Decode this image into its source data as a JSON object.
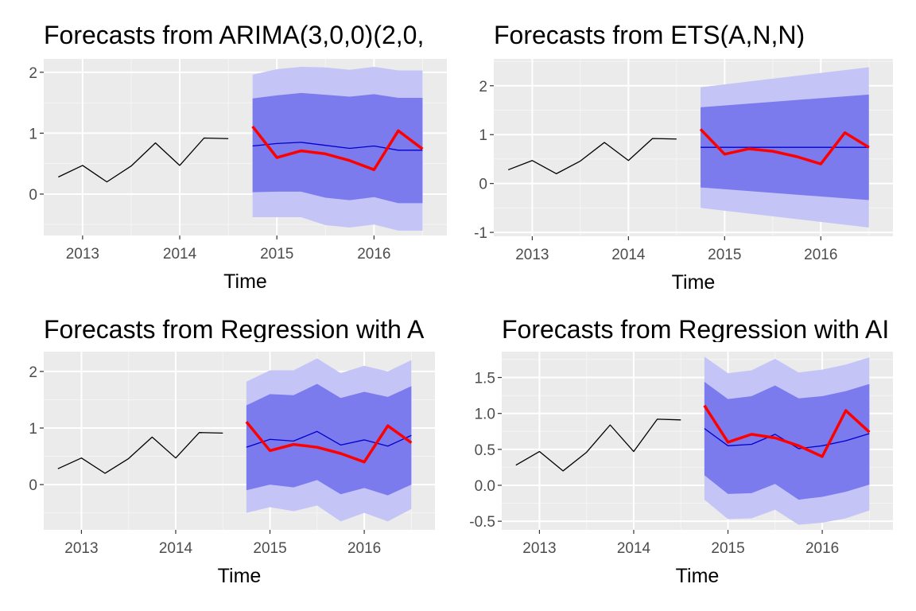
{
  "colors": {
    "panel_bg": "#EBEBEB",
    "grid_major": "#FFFFFF",
    "grid_minor": "#F5F5F5",
    "history_line": "#000000",
    "forecast_mean": "#0000CC",
    "interval_80": "#7B7BEE",
    "interval_95": "#C4C4F7",
    "actual_line": "#FF0000",
    "tick_text": "#4D4D4D"
  },
  "chart_data": [
    {
      "type": "line",
      "title": "Forecasts from ARIMA(3,0,0)(2,0,",
      "xlabel": "Time",
      "ylabel": "",
      "xlim": [
        2012.6,
        2016.75
      ],
      "ylim": [
        -0.68,
        2.22
      ],
      "x_ticks": [
        2013,
        2014,
        2015,
        2016
      ],
      "x_tick_labels": [
        "2013",
        "2014",
        "2015",
        "2016"
      ],
      "y_ticks": [
        0,
        1,
        2
      ],
      "y_tick_labels": [
        "0",
        "1",
        "2"
      ],
      "grid": true,
      "legend": "none",
      "history": {
        "x": [
          2012.75,
          2013.0,
          2013.25,
          2013.5,
          2013.75,
          2014.0,
          2014.25,
          2014.5
        ],
        "y": [
          0.28,
          0.47,
          0.2,
          0.46,
          0.84,
          0.47,
          0.92,
          0.91
        ]
      },
      "forecast": {
        "x": [
          2014.75,
          2015.0,
          2015.25,
          2015.5,
          2015.75,
          2016.0,
          2016.25,
          2016.5
        ],
        "mean": [
          0.79,
          0.83,
          0.85,
          0.8,
          0.75,
          0.79,
          0.72,
          0.72
        ],
        "lo80": [
          0.03,
          0.04,
          0.04,
          -0.06,
          -0.1,
          -0.05,
          -0.15,
          -0.15
        ],
        "hi80": [
          1.57,
          1.62,
          1.66,
          1.63,
          1.6,
          1.64,
          1.58,
          1.58
        ],
        "lo95": [
          -0.38,
          -0.38,
          -0.38,
          -0.51,
          -0.55,
          -0.5,
          -0.6,
          -0.6
        ],
        "hi95": [
          1.96,
          2.05,
          2.09,
          2.08,
          2.04,
          2.09,
          2.03,
          2.03
        ]
      },
      "actual": {
        "x": [
          2014.75,
          2015.0,
          2015.25,
          2015.5,
          2015.75,
          2016.0,
          2016.25,
          2016.5
        ],
        "y": [
          1.11,
          0.6,
          0.71,
          0.66,
          0.55,
          0.4,
          1.04,
          0.74
        ]
      }
    },
    {
      "type": "line",
      "title": "Forecasts from ETS(A,N,N)",
      "xlabel": "Time",
      "ylabel": "",
      "xlim": [
        2012.6,
        2016.75
      ],
      "ylim": [
        -1.08,
        2.55
      ],
      "x_ticks": [
        2013,
        2014,
        2015,
        2016
      ],
      "x_tick_labels": [
        "2013",
        "2014",
        "2015",
        "2016"
      ],
      "y_ticks": [
        -1,
        0,
        1,
        2
      ],
      "y_tick_labels": [
        "-1",
        "0",
        "1",
        "2"
      ],
      "grid": true,
      "legend": "none",
      "history": {
        "x": [
          2012.75,
          2013.0,
          2013.25,
          2013.5,
          2013.75,
          2014.0,
          2014.25,
          2014.5
        ],
        "y": [
          0.28,
          0.47,
          0.2,
          0.46,
          0.84,
          0.47,
          0.92,
          0.91
        ]
      },
      "forecast": {
        "x": [
          2014.75,
          2016.5
        ],
        "mean": [
          0.74,
          0.74
        ],
        "lo80": [
          -0.08,
          -0.34
        ],
        "hi80": [
          1.56,
          1.82
        ],
        "lo95": [
          -0.5,
          -0.9
        ],
        "hi95": [
          1.97,
          2.38
        ]
      },
      "actual": {
        "x": [
          2014.75,
          2015.0,
          2015.25,
          2015.5,
          2015.75,
          2016.0,
          2016.25,
          2016.5
        ],
        "y": [
          1.11,
          0.6,
          0.71,
          0.66,
          0.55,
          0.4,
          1.04,
          0.74
        ]
      }
    },
    {
      "type": "line",
      "title": "Forecasts from Regression with A",
      "xlabel": "Time",
      "ylabel": "",
      "xlim": [
        2012.6,
        2016.75
      ],
      "ylim": [
        -0.8,
        2.35
      ],
      "x_ticks": [
        2013,
        2014,
        2015,
        2016
      ],
      "x_tick_labels": [
        "2013",
        "2014",
        "2015",
        "2016"
      ],
      "y_ticks": [
        0,
        1,
        2
      ],
      "y_tick_labels": [
        "0",
        "1",
        "2"
      ],
      "grid": true,
      "legend": "none",
      "history": {
        "x": [
          2012.75,
          2013.0,
          2013.25,
          2013.5,
          2013.75,
          2014.0,
          2014.25,
          2014.5
        ],
        "y": [
          0.28,
          0.47,
          0.2,
          0.46,
          0.84,
          0.47,
          0.92,
          0.91
        ]
      },
      "forecast": {
        "x": [
          2014.75,
          2015.0,
          2015.25,
          2015.5,
          2015.75,
          2016.0,
          2016.25,
          2016.5
        ],
        "mean": [
          0.66,
          0.8,
          0.77,
          0.94,
          0.7,
          0.79,
          0.68,
          0.87
        ],
        "lo80": [
          -0.1,
          0.0,
          -0.05,
          0.08,
          -0.17,
          -0.06,
          -0.19,
          0.0
        ],
        "hi80": [
          1.4,
          1.6,
          1.58,
          1.78,
          1.53,
          1.64,
          1.55,
          1.74
        ],
        "lo95": [
          -0.5,
          -0.4,
          -0.47,
          -0.37,
          -0.65,
          -0.5,
          -0.65,
          -0.43
        ],
        "hi95": [
          1.82,
          2.02,
          2.02,
          2.23,
          1.97,
          2.1,
          2.0,
          2.2
        ]
      },
      "actual": {
        "x": [
          2014.75,
          2015.0,
          2015.25,
          2015.5,
          2015.75,
          2016.0,
          2016.25,
          2016.5
        ],
        "y": [
          1.11,
          0.6,
          0.71,
          0.66,
          0.55,
          0.4,
          1.04,
          0.74
        ]
      }
    },
    {
      "type": "line",
      "title": "Forecasts from Regression with AI",
      "xlabel": "Time",
      "ylabel": "",
      "xlim": [
        2012.6,
        2016.75
      ],
      "ylim": [
        -0.62,
        1.86
      ],
      "x_ticks": [
        2013,
        2014,
        2015,
        2016
      ],
      "x_tick_labels": [
        "2013",
        "2014",
        "2015",
        "2016"
      ],
      "y_ticks": [
        -0.5,
        0.0,
        0.5,
        1.0,
        1.5
      ],
      "y_tick_labels": [
        "-0.5",
        "0.0",
        "0.5",
        "1.0",
        "1.5"
      ],
      "grid": true,
      "legend": "none",
      "history": {
        "x": [
          2012.75,
          2013.0,
          2013.25,
          2013.5,
          2013.75,
          2014.0,
          2014.25,
          2014.5
        ],
        "y": [
          0.28,
          0.47,
          0.2,
          0.46,
          0.84,
          0.47,
          0.92,
          0.91
        ]
      },
      "forecast": {
        "x": [
          2014.75,
          2015.0,
          2015.25,
          2015.5,
          2015.75,
          2016.0,
          2016.25,
          2016.5
        ],
        "mean": [
          0.79,
          0.55,
          0.57,
          0.71,
          0.51,
          0.55,
          0.62,
          0.72
        ],
        "lo80": [
          0.14,
          -0.12,
          -0.11,
          0.02,
          -0.2,
          -0.16,
          -0.09,
          0.01
        ],
        "hi80": [
          1.44,
          1.2,
          1.24,
          1.39,
          1.21,
          1.24,
          1.31,
          1.41
        ],
        "lo95": [
          -0.2,
          -0.47,
          -0.46,
          -0.34,
          -0.55,
          -0.52,
          -0.46,
          -0.35
        ],
        "hi95": [
          1.79,
          1.56,
          1.6,
          1.76,
          1.57,
          1.61,
          1.68,
          1.78
        ]
      },
      "actual": {
        "x": [
          2014.75,
          2015.0,
          2015.25,
          2015.5,
          2015.75,
          2016.0,
          2016.25,
          2016.5
        ],
        "y": [
          1.11,
          0.6,
          0.71,
          0.66,
          0.55,
          0.4,
          1.04,
          0.74
        ]
      }
    }
  ]
}
